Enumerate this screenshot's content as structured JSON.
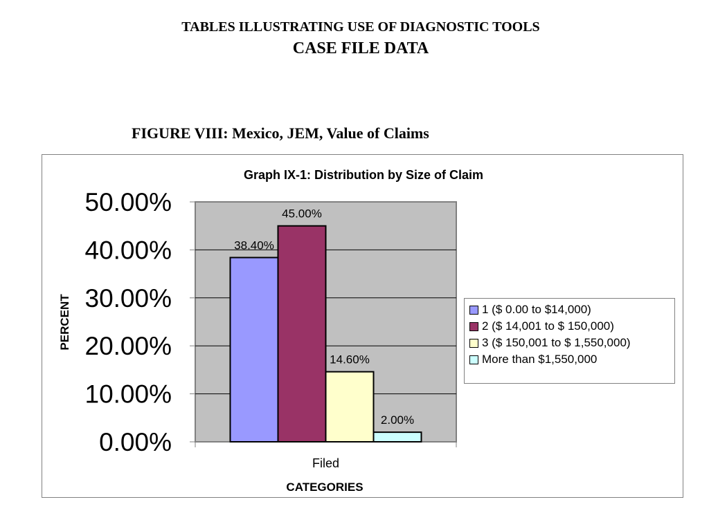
{
  "page": {
    "title": "TABLES ILLUSTRATING USE OF DIAGNOSTIC TOOLS",
    "subtitle": "CASE FILE DATA",
    "figure_caption": "FIGURE VIII:  Mexico, JEM, Value of Claims"
  },
  "chart_data": {
    "type": "bar",
    "title": "Graph IX-1:  Distribution by Size of Claim",
    "xlabel": "CATEGORIES",
    "ylabel": "PERCENT",
    "categories": [
      "Filed"
    ],
    "ylim": [
      0,
      0.5
    ],
    "yticks": [
      "0.00%",
      "10.00%",
      "20.00%",
      "30.00%",
      "40.00%",
      "50.00%"
    ],
    "grid": true,
    "legend_position": "right",
    "plot_background": "#c0c0c0",
    "series": [
      {
        "name": "1 ($ 0.00  to  $14,000)",
        "values": [
          0.384
        ],
        "label": "38.40%",
        "color": "#9999ff"
      },
      {
        "name": "2 ($ 14,001  to  $ 150,000)",
        "values": [
          0.45
        ],
        "label": "45.00%",
        "color": "#993366"
      },
      {
        "name": "3 ($ 150,001  to  $ 1,550,000)",
        "values": [
          0.146
        ],
        "label": "14.60%",
        "color": "#ffffcc"
      },
      {
        "name": "More than $1,550,000",
        "values": [
          0.02
        ],
        "label": "2.00%",
        "color": "#ccffff"
      }
    ]
  }
}
